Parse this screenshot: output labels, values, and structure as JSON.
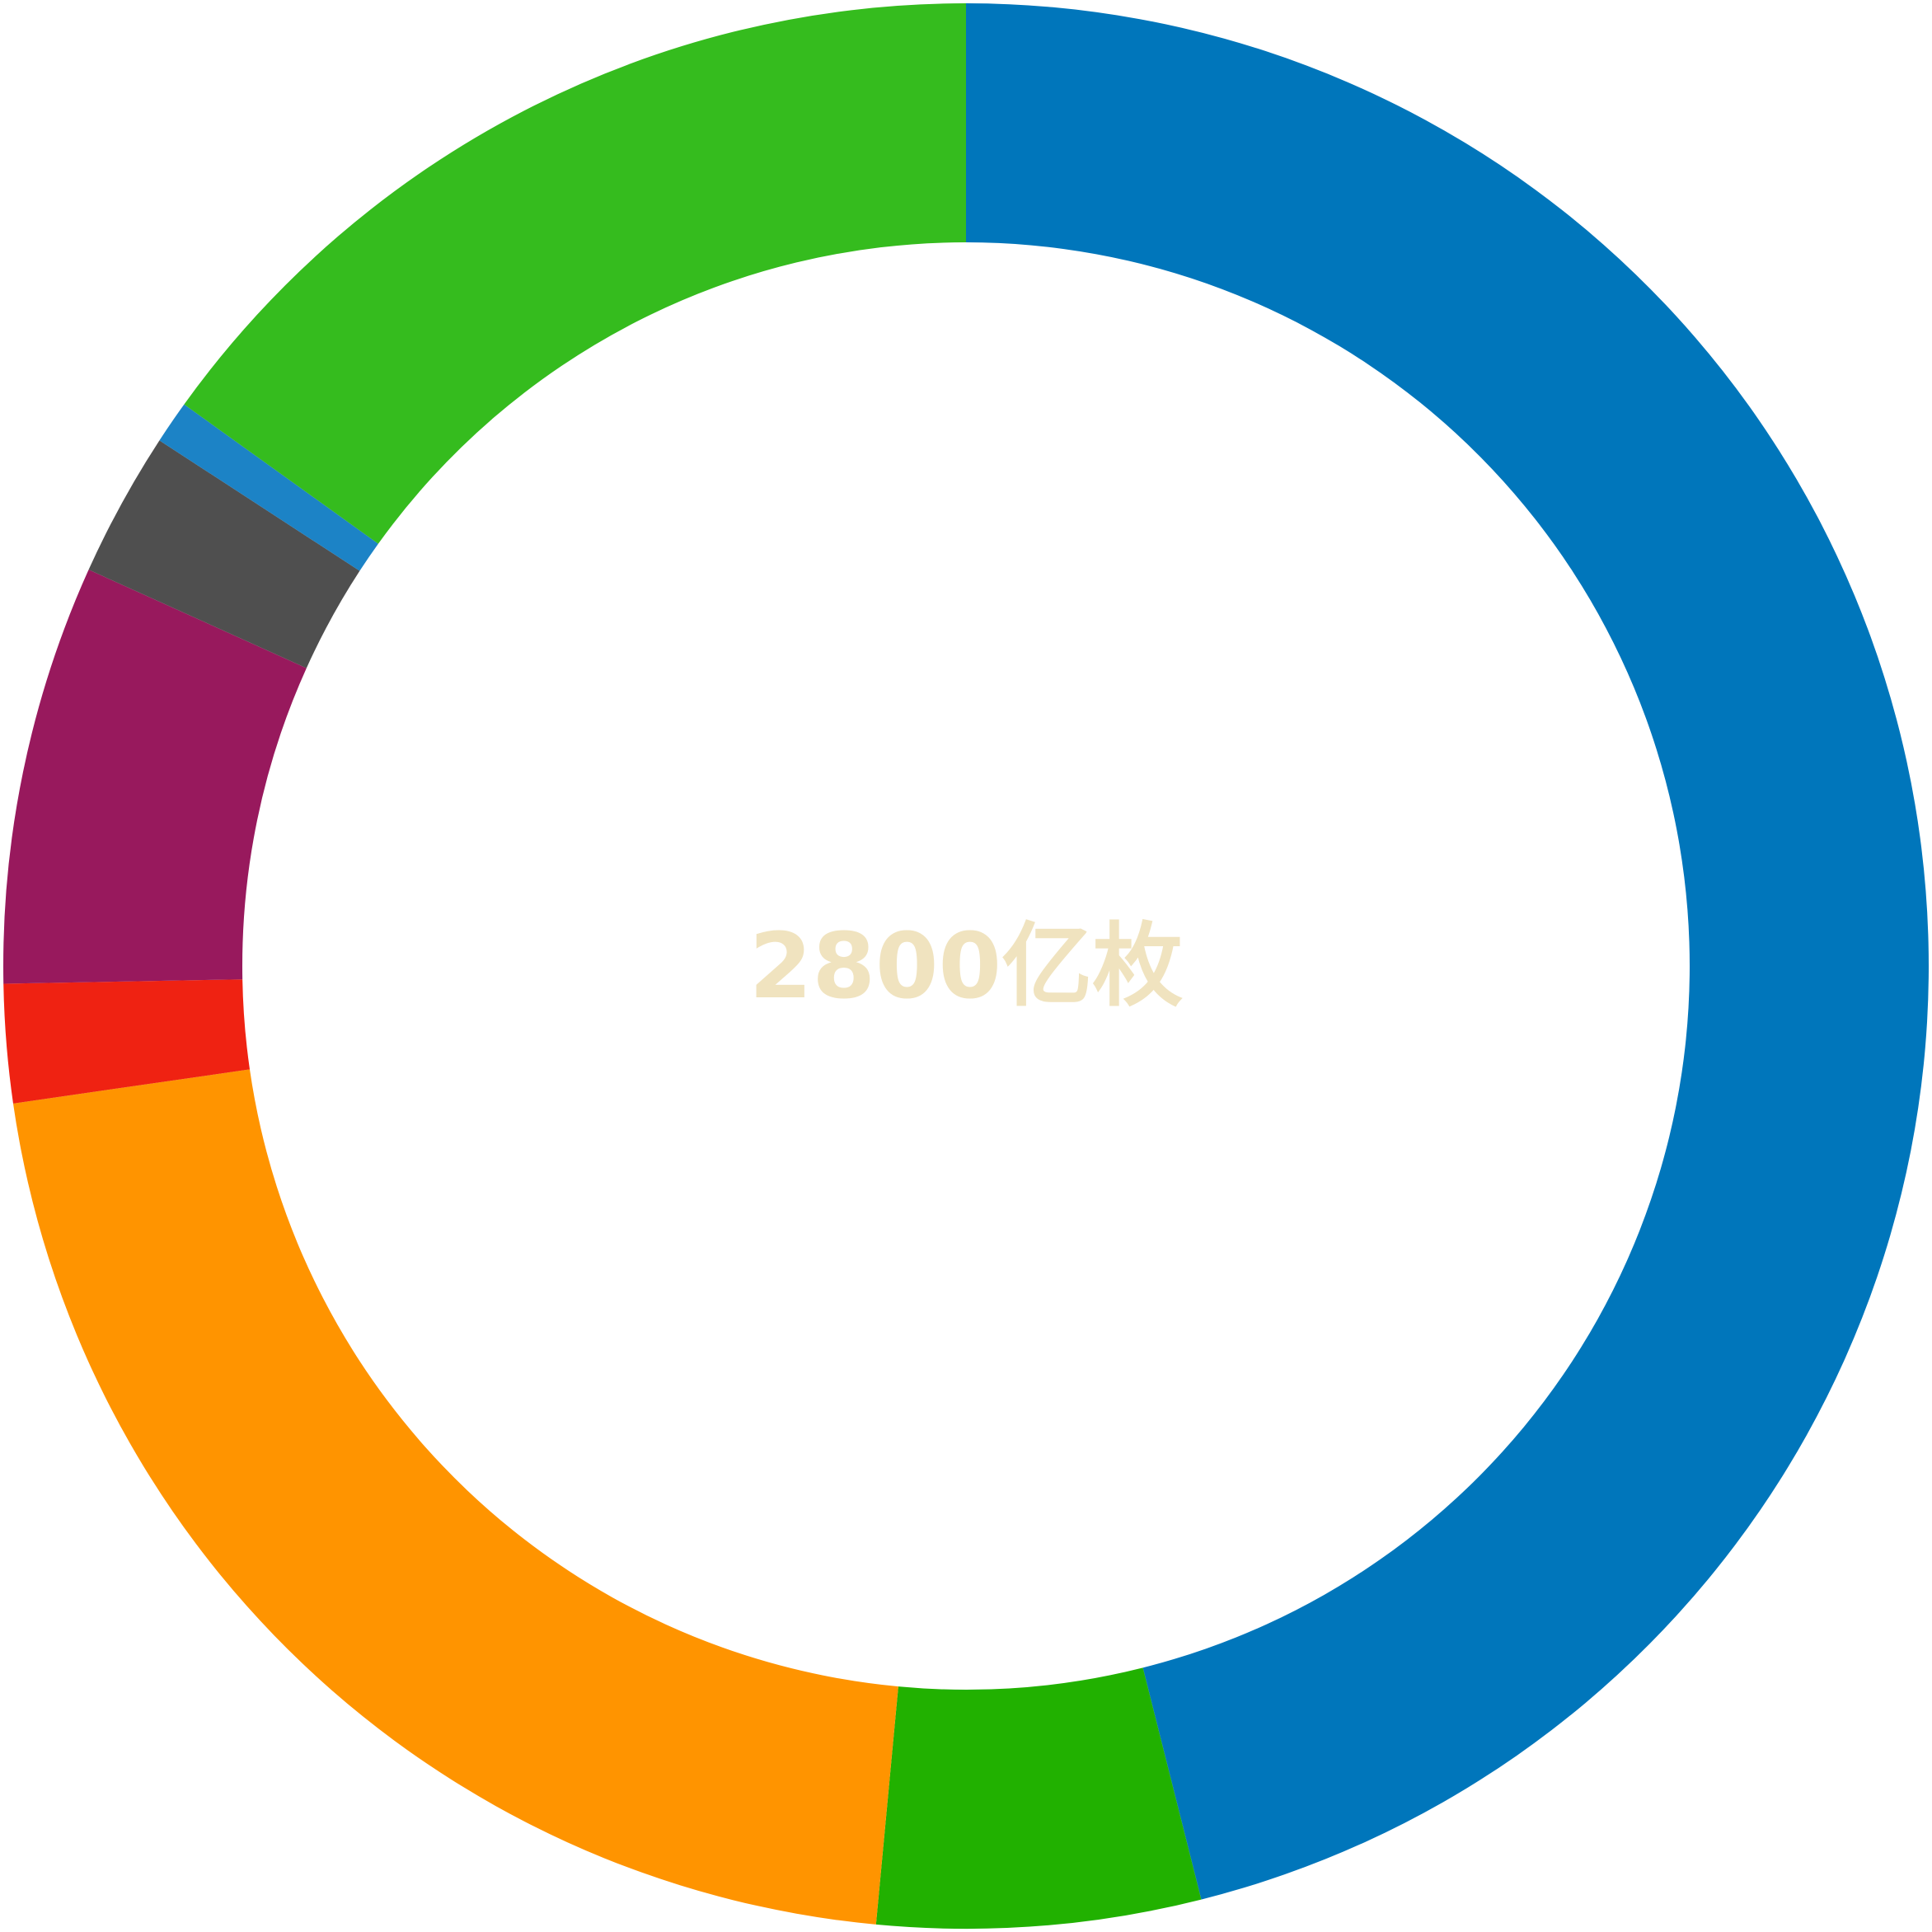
{
  "chart_data": {
    "type": "pie",
    "variant": "donut",
    "center_label": "2800亿枚",
    "center_label_color": "#f0e3bf",
    "values": [
      51.0,
      6.0,
      23.5,
      2.2,
      7.8,
      2.7,
      0.8,
      16.7
    ],
    "colors": [
      "#0076bb",
      "#21b100",
      "#ff9400",
      "#ef2212",
      "#98195d",
      "#4f4f4f",
      "#1c83c6",
      "#35bc1e"
    ],
    "start_angle_deg": 0,
    "direction": "clockwise",
    "legend": "none"
  }
}
